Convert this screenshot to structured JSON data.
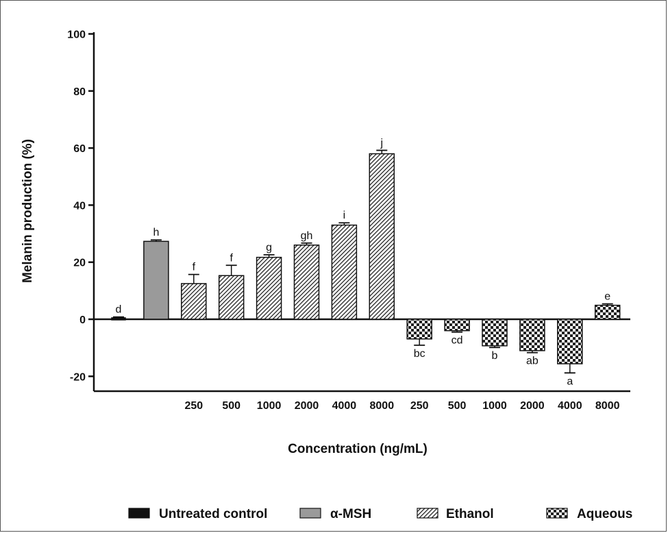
{
  "chart_data": {
    "type": "bar",
    "title": "",
    "xlabel": "Concentration (ng/mL)",
    "ylabel": "Melanin production (%)",
    "ylim": [
      -25,
      100
    ],
    "yticks": [
      -20,
      0,
      20,
      40,
      60,
      80,
      100
    ],
    "grid": false,
    "legend_position": "bottom",
    "series": [
      {
        "name": "Untreated control",
        "fill": "solid",
        "color": "#111111"
      },
      {
        "name": "α-MSH",
        "fill": "solid",
        "color": "#9a9a9a"
      },
      {
        "name": "Ethanol",
        "fill": "hatch",
        "color": "#222222"
      },
      {
        "name": "Aqueous",
        "fill": "checker",
        "color": "#222222"
      }
    ],
    "bars": [
      {
        "series": 0,
        "category": "",
        "value": 0.5,
        "error": 0.3,
        "letter": "d"
      },
      {
        "series": 1,
        "category": "",
        "value": 27.3,
        "error": 0.5,
        "letter": "h"
      },
      {
        "series": 2,
        "category": "250",
        "value": 12.5,
        "error": 3.2,
        "letter": "f"
      },
      {
        "series": 2,
        "category": "500",
        "value": 15.3,
        "error": 3.6,
        "letter": "f"
      },
      {
        "series": 2,
        "category": "1000",
        "value": 21.7,
        "error": 0.9,
        "letter": "g"
      },
      {
        "series": 2,
        "category": "2000",
        "value": 26.0,
        "error": 0.7,
        "letter": "gh"
      },
      {
        "series": 2,
        "category": "4000",
        "value": 33.0,
        "error": 0.8,
        "letter": "i"
      },
      {
        "series": 2,
        "category": "8000",
        "value": 58.0,
        "error": 1.2,
        "letter": "j"
      },
      {
        "series": 3,
        "category": "250",
        "value": -6.9,
        "error": 2.2,
        "letter": "bc"
      },
      {
        "series": 3,
        "category": "500",
        "value": -4.0,
        "error": 0.5,
        "letter": "cd"
      },
      {
        "series": 3,
        "category": "1000",
        "value": -9.3,
        "error": 0.6,
        "letter": "b"
      },
      {
        "series": 3,
        "category": "2000",
        "value": -11.0,
        "error": 0.7,
        "letter": "ab"
      },
      {
        "series": 3,
        "category": "4000",
        "value": -15.6,
        "error": 3.2,
        "letter": "a"
      },
      {
        "series": 3,
        "category": "8000",
        "value": 4.9,
        "error": 0.5,
        "letter": "e"
      }
    ]
  }
}
